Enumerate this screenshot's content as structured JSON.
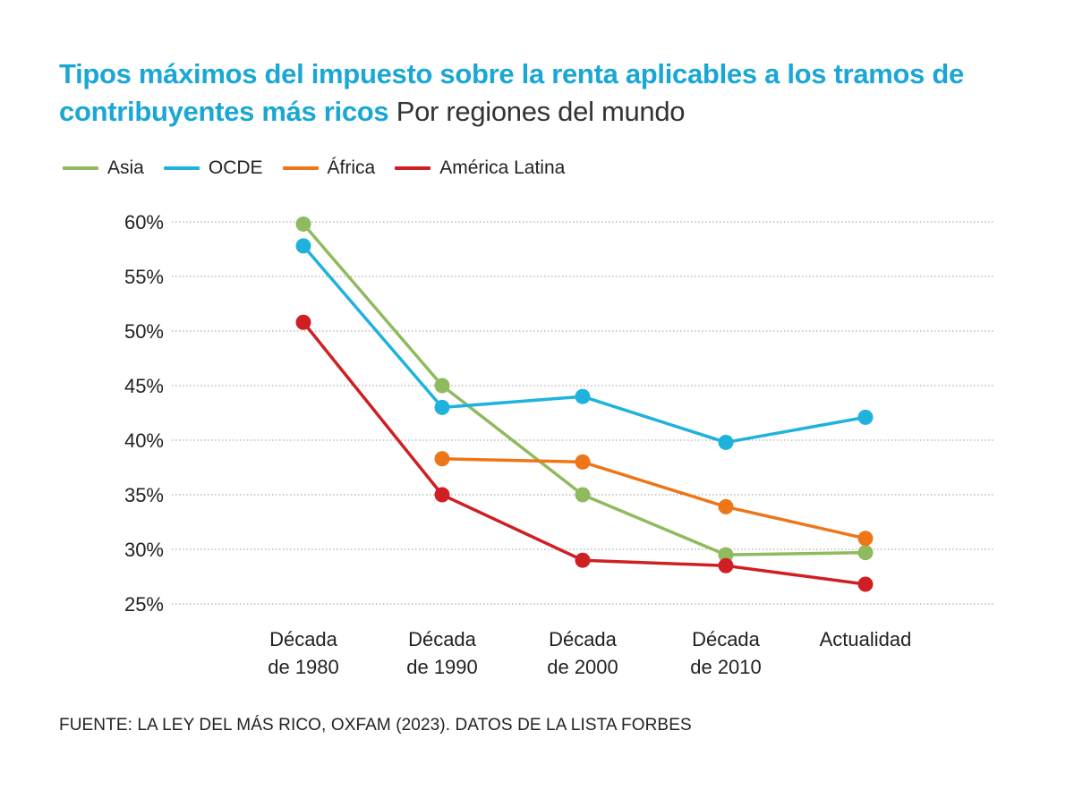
{
  "header": {
    "title": "Tipos máximos del impuesto sobre la renta aplicables a los tramos de contribuyentes más ricos",
    "subtitle": "Por regiones del mundo"
  },
  "footer": {
    "source": "FUENTE: LA LEY DEL MÁS RICO, OXFAM (2023). DATOS DE LA LISTA FORBES"
  },
  "chart_data": {
    "type": "line",
    "title": "Tipos máximos del impuesto sobre la renta aplicables a los tramos de contribuyentes más ricos",
    "subtitle": "Por regiones del mundo",
    "xlabel": "",
    "ylabel": "",
    "categories": [
      [
        "Década",
        "de 1980"
      ],
      [
        "Década",
        "de 1990"
      ],
      [
        "Década",
        "de 2000"
      ],
      [
        "Década",
        "de 2010"
      ],
      [
        "Actualidad"
      ]
    ],
    "ylim": [
      25,
      60
    ],
    "yticks": [
      60,
      55,
      50,
      45,
      40,
      35,
      30,
      25
    ],
    "ytick_labels": [
      "60%",
      "55%",
      "50%",
      "45%",
      "40%",
      "35%",
      "30%",
      "25%"
    ],
    "grid": "horizontal dotted",
    "legend_position": "top-left",
    "series": [
      {
        "name": "Asia",
        "color": "#8fba5e",
        "values": [
          59.8,
          45,
          35,
          29.5,
          29.7
        ]
      },
      {
        "name": "OCDE",
        "color": "#1eb2dd",
        "values": [
          57.8,
          43,
          44,
          39.8,
          42.1
        ]
      },
      {
        "name": "África",
        "color": "#ee7518",
        "values": [
          null,
          38.3,
          38,
          33.9,
          31
        ]
      },
      {
        "name": "América Latina",
        "color": "#cf1f23",
        "values": [
          50.8,
          35,
          29,
          28.5,
          26.8
        ]
      }
    ]
  }
}
